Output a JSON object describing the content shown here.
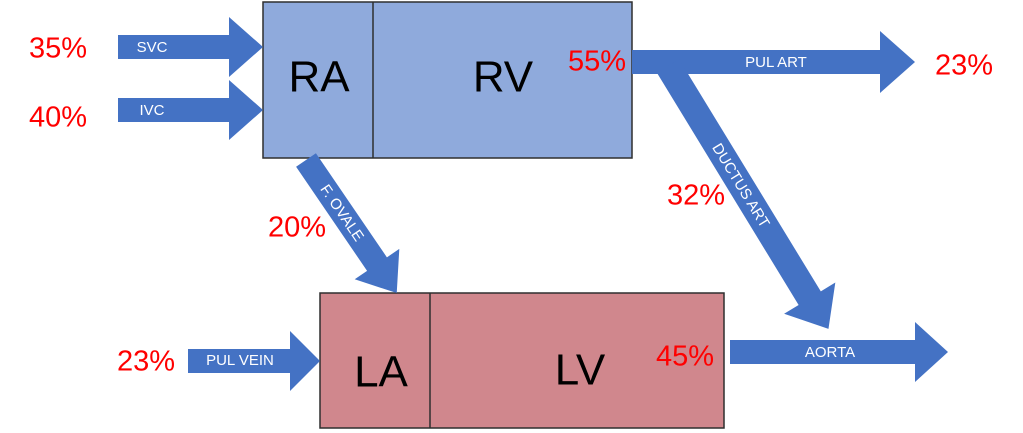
{
  "nodes": [
    {
      "label": "RA"
    },
    {
      "label": "RV"
    },
    {
      "label": "LA"
    },
    {
      "label": "LV"
    }
  ],
  "flows": [
    {
      "label": "SVC",
      "percent": "35%"
    },
    {
      "label": "IVC",
      "percent": "40%"
    },
    {
      "label": "F. OVALE",
      "percent": "20%"
    },
    {
      "label": "PUL ART",
      "start_percent": "55%",
      "end_percent": "23%"
    },
    {
      "label": "DUCTUS ART",
      "percent": "32%"
    },
    {
      "label": "PUL VEIN",
      "percent": "23%"
    },
    {
      "label": "AORTA",
      "percent": "45%"
    }
  ]
}
